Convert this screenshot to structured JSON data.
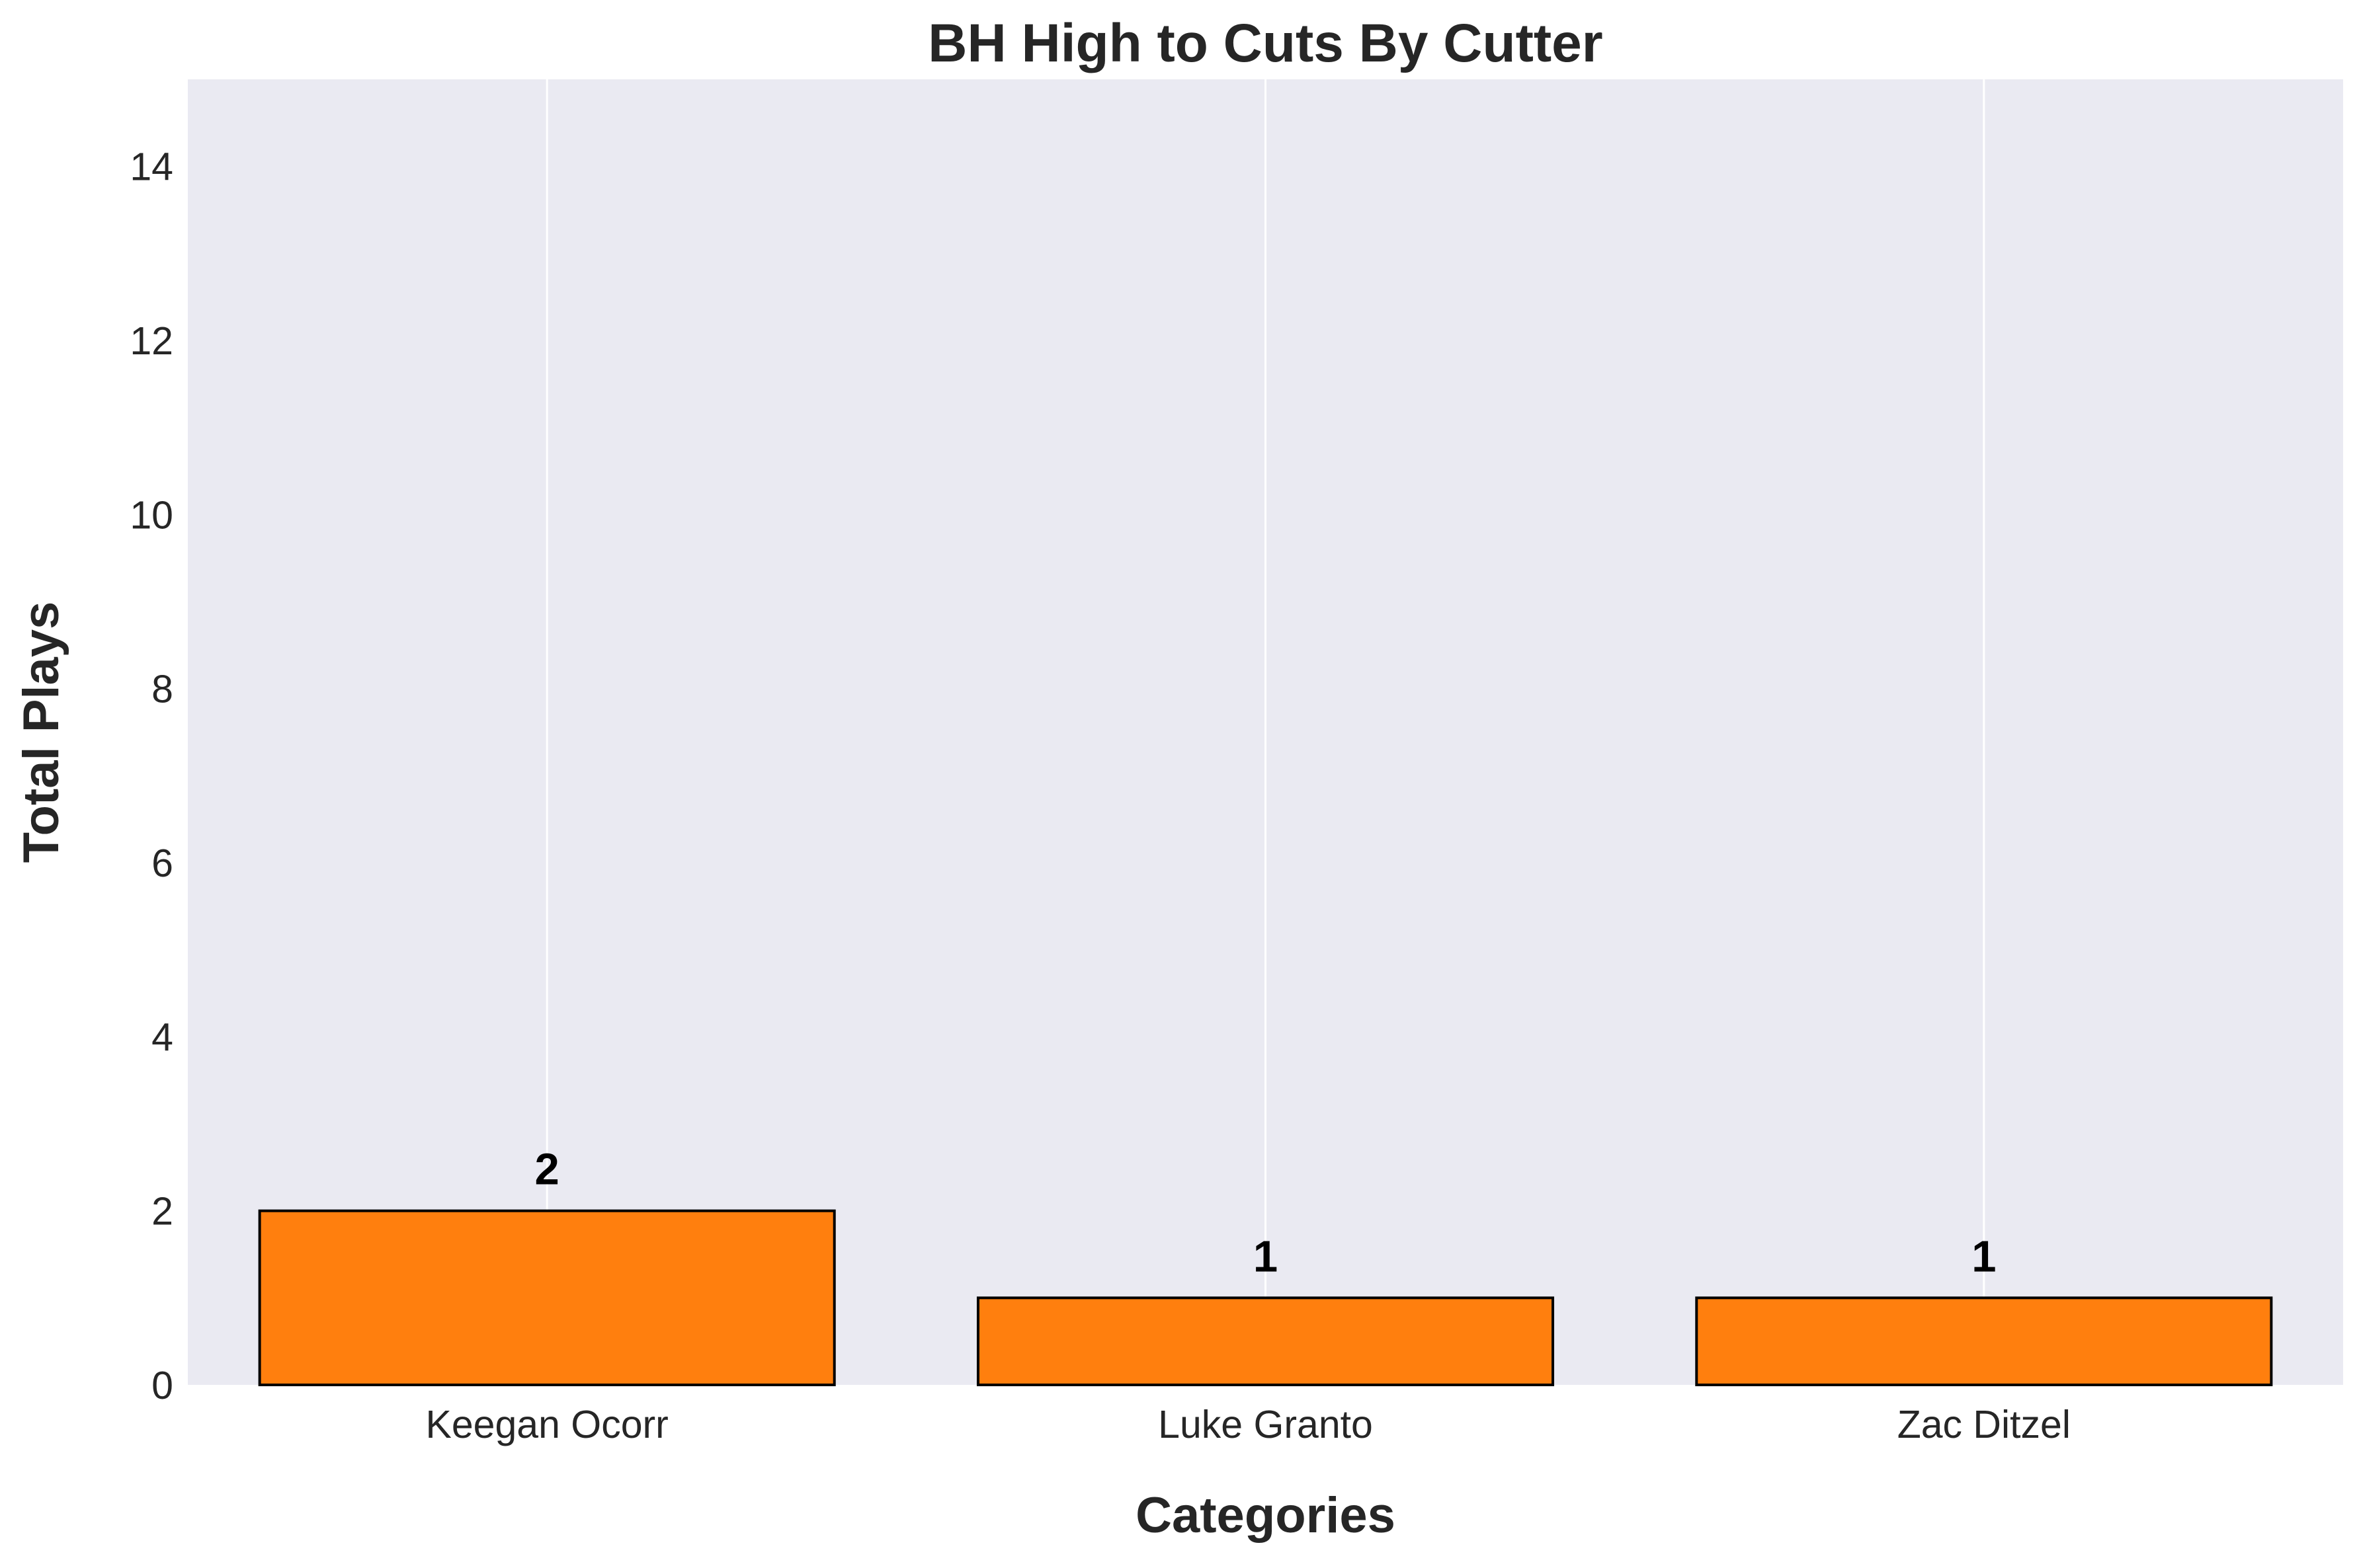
{
  "chart_data": {
    "type": "bar",
    "title": "BH High to Cuts By Cutter",
    "xlabel": "Categories",
    "ylabel": "Total Plays",
    "categories": [
      "Keegan Ocorr",
      "Luke Granto",
      "Zac Ditzel"
    ],
    "values": [
      2,
      1,
      1
    ],
    "value_labels": [
      "2",
      "1",
      "1"
    ],
    "ylim": [
      0,
      15
    ],
    "yticks": [
      0,
      2,
      4,
      6,
      8,
      10,
      12,
      14
    ],
    "ytick_labels": [
      "0",
      "2",
      "4",
      "6",
      "8",
      "10",
      "12",
      "14"
    ],
    "grid": "vertical",
    "legend": "none",
    "colors": {
      "bar": "#ff7f0e",
      "bar_edge": "#000000",
      "plot_background": "#eaeaf2",
      "grid": "#ffffff",
      "text": "#262626"
    }
  }
}
